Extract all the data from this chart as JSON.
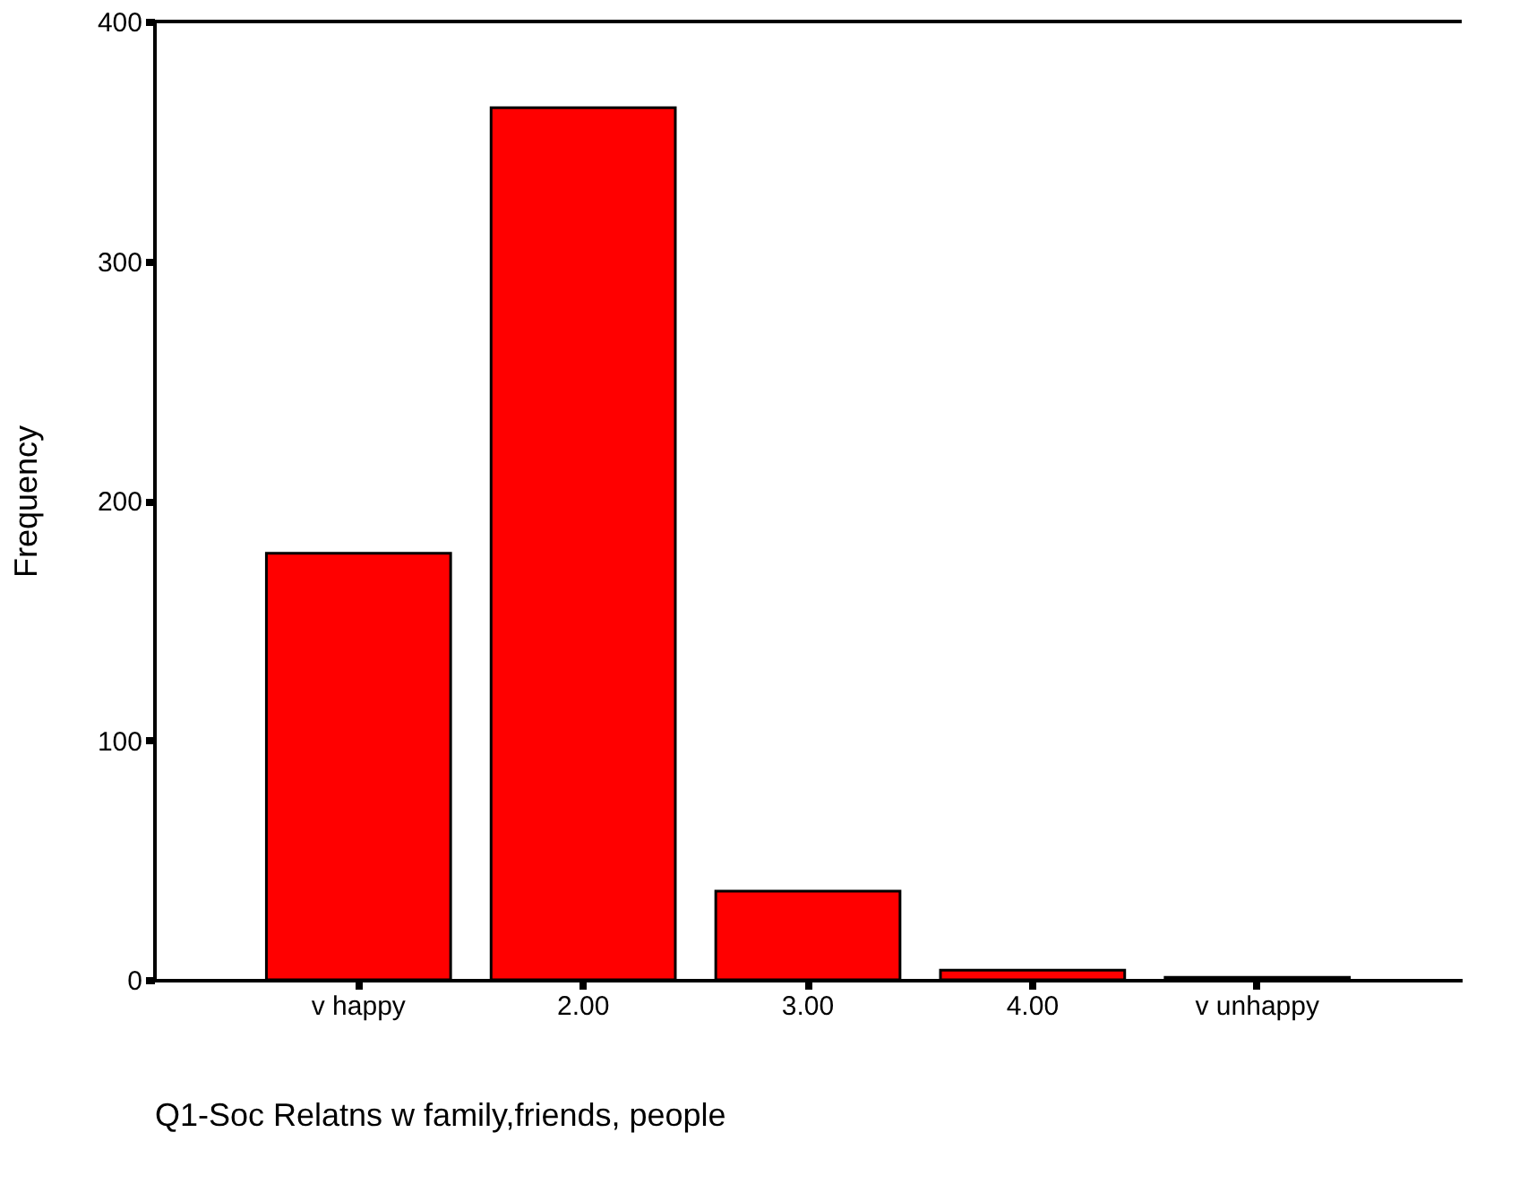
{
  "chart_data": {
    "type": "bar",
    "xlabel": "Q1-Soc Relatns w family,friends, people",
    "ylabel": "Frequency",
    "categories": [
      "v happy",
      "2.00",
      "3.00",
      "4.00",
      "v unhappy"
    ],
    "values": [
      178,
      364,
      37,
      4,
      1
    ],
    "color": "#ff0000",
    "ylim": [
      0,
      400
    ],
    "yticks": [
      0,
      100,
      200,
      300,
      400
    ],
    "grid": false
  }
}
